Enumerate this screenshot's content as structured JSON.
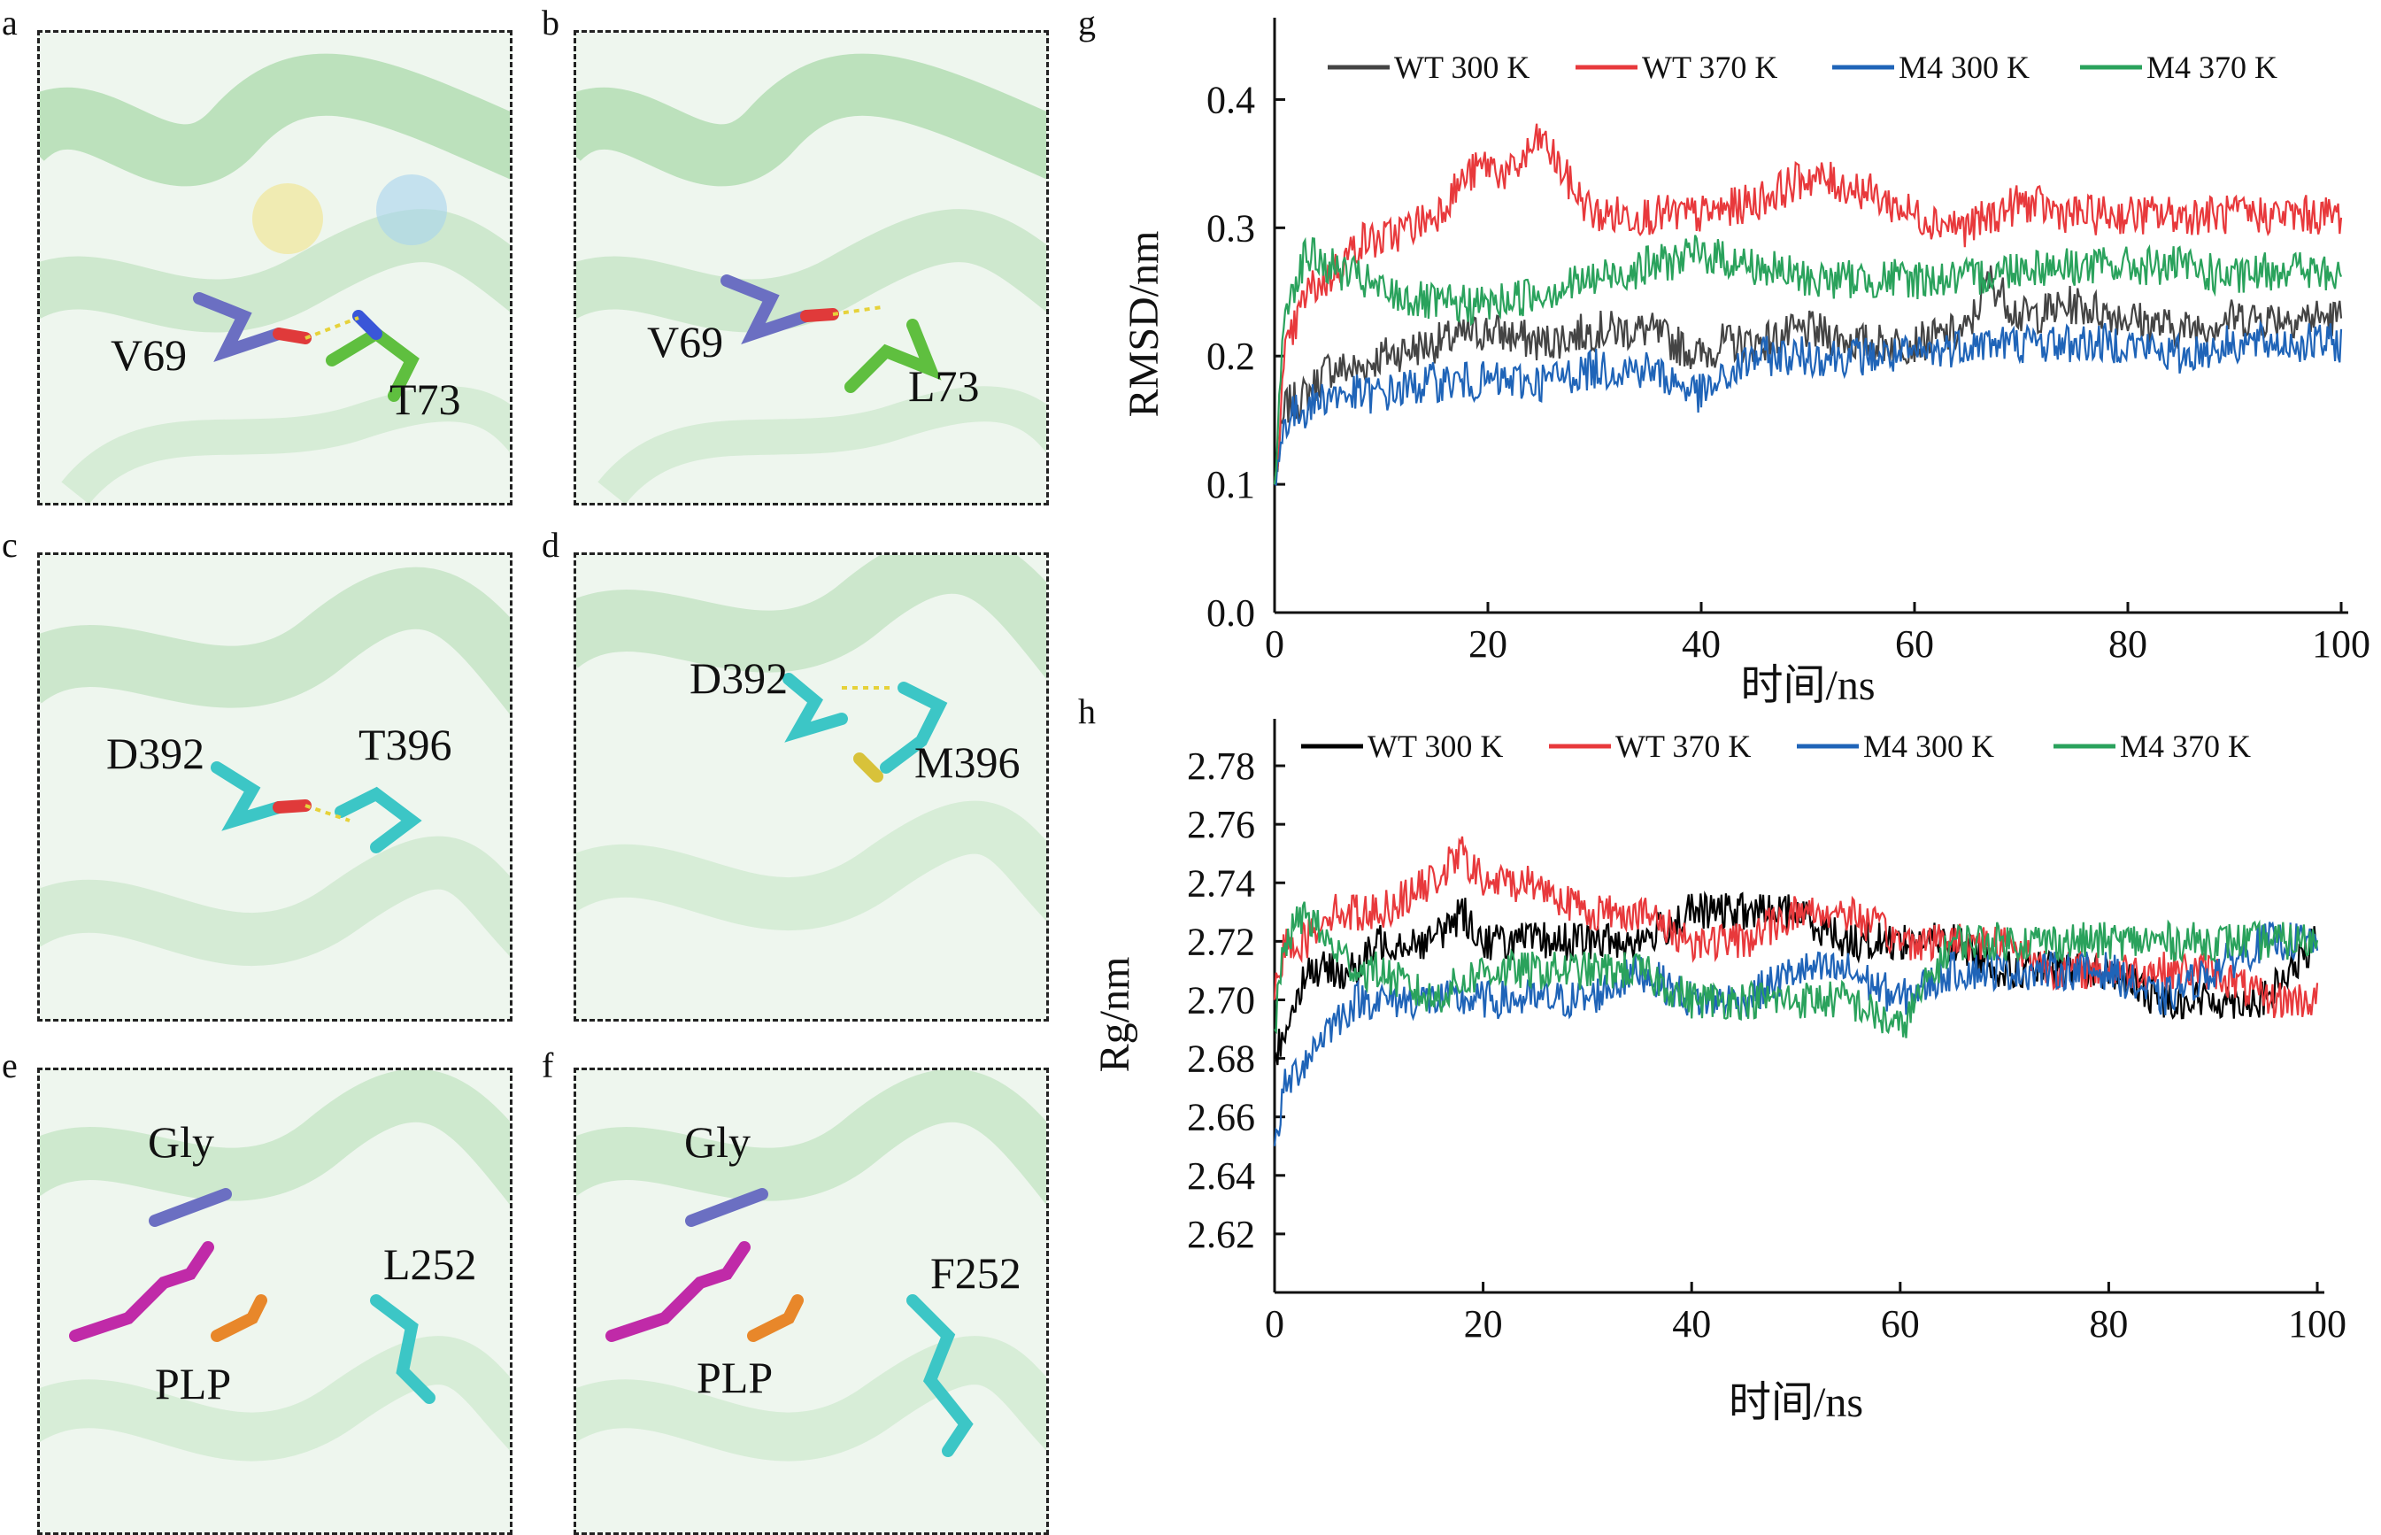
{
  "panels": {
    "a": {
      "letter": "a",
      "labels": [
        "V69",
        "T73"
      ]
    },
    "b": {
      "letter": "b",
      "labels": [
        "V69",
        "L73"
      ]
    },
    "c": {
      "letter": "c",
      "labels": [
        "D392",
        "T396"
      ]
    },
    "d": {
      "letter": "d",
      "labels": [
        "D392",
        "M396"
      ]
    },
    "e": {
      "letter": "e",
      "labels": [
        "Gly",
        "L252",
        "PLP"
      ]
    },
    "f": {
      "letter": "f",
      "labels": [
        "Gly",
        "F252",
        "PLP"
      ]
    }
  },
  "colors": {
    "wt300": "#444444",
    "wt300_h": "#000000",
    "wt370": "#e8393c",
    "m4_300": "#1f64b8",
    "m4_370": "#2aa25c",
    "cartoon": "#8fcf8f"
  },
  "chart_data": [
    {
      "panel": "g",
      "type": "line",
      "xlabel": "时间/ns",
      "ylabel": "RMSD/nm",
      "xlim": [
        0,
        100
      ],
      "ylim": [
        0,
        0.45
      ],
      "xticks": [
        0,
        20,
        40,
        60,
        80,
        100
      ],
      "yticks": [
        "0.0",
        "0.1",
        "0.2",
        "0.3",
        "0.4"
      ],
      "series": [
        {
          "name": "WT 300 K",
          "key": "wt300",
          "x": [
            0,
            1,
            3,
            5,
            8,
            10,
            15,
            20,
            25,
            30,
            35,
            40,
            42,
            45,
            50,
            55,
            60,
            65,
            67,
            70,
            75,
            80,
            85,
            90,
            95,
            100
          ],
          "y": [
            0.1,
            0.16,
            0.17,
            0.19,
            0.19,
            0.2,
            0.21,
            0.22,
            0.21,
            0.22,
            0.22,
            0.2,
            0.21,
            0.21,
            0.22,
            0.21,
            0.21,
            0.22,
            0.26,
            0.23,
            0.24,
            0.23,
            0.22,
            0.23,
            0.23,
            0.23
          ]
        },
        {
          "name": "WT 370 K",
          "key": "wt370",
          "x": [
            0,
            1,
            3,
            5,
            8,
            10,
            15,
            18,
            20,
            22,
            25,
            28,
            30,
            35,
            40,
            45,
            50,
            55,
            60,
            65,
            70,
            75,
            80,
            85,
            90,
            95,
            100
          ],
          "y": [
            0.1,
            0.2,
            0.25,
            0.26,
            0.29,
            0.29,
            0.31,
            0.34,
            0.35,
            0.34,
            0.37,
            0.33,
            0.31,
            0.31,
            0.31,
            0.32,
            0.34,
            0.33,
            0.31,
            0.3,
            0.32,
            0.31,
            0.31,
            0.31,
            0.31,
            0.31,
            0.31
          ]
        },
        {
          "name": "M4 300 K",
          "key": "m4_300",
          "x": [
            0,
            1,
            3,
            5,
            10,
            15,
            20,
            25,
            30,
            35,
            40,
            42,
            45,
            50,
            55,
            60,
            65,
            70,
            75,
            80,
            85,
            90,
            95,
            100
          ],
          "y": [
            0.1,
            0.15,
            0.16,
            0.17,
            0.17,
            0.18,
            0.18,
            0.18,
            0.19,
            0.19,
            0.17,
            0.18,
            0.2,
            0.2,
            0.2,
            0.2,
            0.21,
            0.21,
            0.21,
            0.21,
            0.2,
            0.21,
            0.21,
            0.21
          ]
        },
        {
          "name": "M4 370 K",
          "key": "m4_370",
          "x": [
            0,
            1,
            3,
            5,
            8,
            10,
            15,
            20,
            25,
            30,
            35,
            40,
            45,
            50,
            55,
            60,
            65,
            70,
            75,
            80,
            85,
            90,
            95,
            100
          ],
          "y": [
            0.1,
            0.24,
            0.28,
            0.27,
            0.26,
            0.25,
            0.24,
            0.24,
            0.25,
            0.26,
            0.27,
            0.28,
            0.27,
            0.26,
            0.26,
            0.26,
            0.26,
            0.27,
            0.27,
            0.27,
            0.27,
            0.26,
            0.27,
            0.26
          ]
        }
      ]
    },
    {
      "panel": "h",
      "type": "line",
      "xlabel": "时间/ns",
      "ylabel": "Rg/nm",
      "xlim": [
        0,
        100
      ],
      "ylim": [
        2.6,
        2.79
      ],
      "xticks": [
        0,
        20,
        40,
        60,
        80,
        100
      ],
      "yticks": [
        "2.62",
        "2.64",
        "2.66",
        "2.68",
        "2.70",
        "2.72",
        "2.74",
        "2.76",
        "2.78"
      ],
      "series": [
        {
          "name": "WT 300 K",
          "key": "wt300_h",
          "x": [
            0,
            1,
            2,
            3,
            5,
            8,
            10,
            15,
            18,
            20,
            25,
            30,
            35,
            40,
            45,
            50,
            55,
            60,
            65,
            70,
            75,
            80,
            85,
            90,
            95,
            100
          ],
          "y": [
            2.68,
            2.69,
            2.7,
            2.71,
            2.71,
            2.71,
            2.72,
            2.72,
            2.73,
            2.72,
            2.72,
            2.72,
            2.72,
            2.73,
            2.73,
            2.73,
            2.72,
            2.72,
            2.72,
            2.71,
            2.71,
            2.71,
            2.7,
            2.7,
            2.7,
            2.72
          ]
        },
        {
          "name": "WT 370 K",
          "key": "wt370",
          "x": [
            0,
            1,
            3,
            5,
            8,
            10,
            15,
            18,
            20,
            25,
            30,
            35,
            40,
            45,
            50,
            55,
            60,
            65,
            70,
            75,
            80,
            85,
            90,
            95,
            100
          ],
          "y": [
            2.7,
            2.72,
            2.72,
            2.73,
            2.73,
            2.73,
            2.74,
            2.75,
            2.74,
            2.74,
            2.73,
            2.73,
            2.72,
            2.72,
            2.73,
            2.73,
            2.72,
            2.72,
            2.72,
            2.71,
            2.71,
            2.71,
            2.71,
            2.7,
            2.7
          ]
        },
        {
          "name": "M4 300 K",
          "key": "m4_300",
          "x": [
            0,
            1,
            3,
            5,
            8,
            10,
            15,
            20,
            25,
            30,
            35,
            40,
            45,
            50,
            55,
            60,
            65,
            70,
            75,
            80,
            85,
            90,
            95,
            100
          ],
          "y": [
            2.65,
            2.67,
            2.68,
            2.69,
            2.7,
            2.7,
            2.7,
            2.7,
            2.7,
            2.7,
            2.71,
            2.7,
            2.7,
            2.71,
            2.71,
            2.7,
            2.71,
            2.71,
            2.71,
            2.71,
            2.7,
            2.71,
            2.72,
            2.72
          ]
        },
        {
          "name": "M4 370 K",
          "key": "m4_370",
          "x": [
            0,
            1,
            3,
            5,
            8,
            10,
            15,
            20,
            25,
            30,
            35,
            40,
            45,
            50,
            55,
            60,
            65,
            70,
            75,
            80,
            85,
            90,
            95,
            100
          ],
          "y": [
            2.69,
            2.72,
            2.73,
            2.72,
            2.71,
            2.71,
            2.7,
            2.71,
            2.71,
            2.71,
            2.71,
            2.7,
            2.7,
            2.7,
            2.7,
            2.69,
            2.72,
            2.72,
            2.72,
            2.72,
            2.72,
            2.72,
            2.72,
            2.72
          ]
        }
      ]
    }
  ]
}
